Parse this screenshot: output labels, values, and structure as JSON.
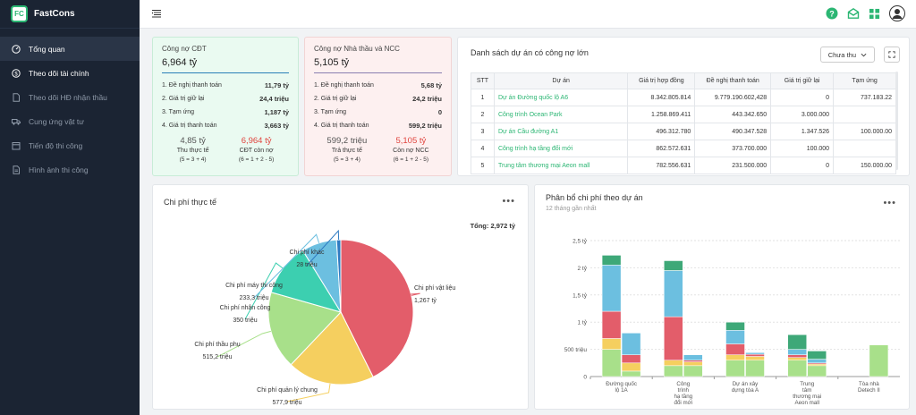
{
  "app": {
    "logo_text": "FC",
    "name": "FastCons"
  },
  "sidebar": {
    "items": [
      {
        "label": "Tổng quan",
        "icon": "dashboard-icon"
      },
      {
        "label": "Theo dõi tài chính",
        "icon": "dollar-icon"
      },
      {
        "label": "Theo dõi HĐ nhận thầu",
        "icon": "document-icon"
      },
      {
        "label": "Cung ứng vật tư",
        "icon": "truck-icon"
      },
      {
        "label": "Tiến độ thi công",
        "icon": "calendar-icon"
      },
      {
        "label": "Hình ảnh thi công",
        "icon": "image-icon"
      }
    ]
  },
  "cdt": {
    "title": "Công nợ CĐT",
    "total": "6,964 tỷ",
    "rows": [
      {
        "label": "1. Đề nghị thanh toán",
        "value": "11,79 tỷ"
      },
      {
        "label": "2. Giá trị giữ lại",
        "value": "24,4 triệu"
      },
      {
        "label": "3. Tạm ứng",
        "value": "1,187 tỷ"
      },
      {
        "label": "4. Giá trị thanh toán",
        "value": "3,663 tỷ"
      }
    ],
    "left": {
      "value": "4,85 tỷ",
      "label": "Thu thực tế",
      "formula": "(5 = 3 + 4)"
    },
    "right": {
      "value": "6,964 tỷ",
      "label": "CĐT còn nợ",
      "formula": "(6 = 1 + 2 - 5)"
    }
  },
  "ncc": {
    "title": "Công nợ Nhà thầu và NCC",
    "total": "5,105 tỷ",
    "rows": [
      {
        "label": "1. Đề nghị thanh toán",
        "value": "5,68 tỷ"
      },
      {
        "label": "2. Giá trị giữ lại",
        "value": "24,2 triệu"
      },
      {
        "label": "3. Tạm ứng",
        "value": "0"
      },
      {
        "label": "4. Giá trị thanh toán",
        "value": "599,2 triệu"
      }
    ],
    "left": {
      "value": "599,2 triệu",
      "label": "Trả thực tế",
      "formula": "(5 = 3 + 4)"
    },
    "right": {
      "value": "5,105 tỷ",
      "label": "Còn nợ NCC",
      "formula": "(6 = 1 + 2 - 5)"
    }
  },
  "projects": {
    "title": "Danh sách dự án có công nợ lớn",
    "filter": "Chưa thu",
    "headers": [
      "STT",
      "Dự án",
      "Giá trị hợp đồng",
      "Đề nghị thanh toán",
      "Giá trị giữ lại",
      "Tạm ứng"
    ],
    "rows": [
      [
        "1",
        "Dự án Đường quốc lộ A6",
        "8.342.805.814",
        "9.779.190.602,428",
        "0",
        "737.183.22"
      ],
      [
        "2",
        "Công trình Ocean Park",
        "1.258.869.411",
        "443.342.650",
        "3.000.000",
        ""
      ],
      [
        "3",
        "Dự án Cầu đường A1",
        "496.312.780",
        "490.347.528",
        "1.347.526",
        "100.000.00"
      ],
      [
        "4",
        "Công trình hạ tầng đổi mới",
        "862.572.631",
        "373.700.000",
        "100.000",
        ""
      ],
      [
        "5",
        "Trung tâm thương mại Aeon mall",
        "782.556.631",
        "231.500.000",
        "0",
        "150.000.00"
      ]
    ]
  },
  "actual_cost": {
    "title": "Chi phí thực tế",
    "total_label": "Tổng: 2,972 tỷ"
  },
  "distribution": {
    "title": "Phân bổ chi phí theo dự án",
    "subtitle": "12 tháng gần nhất"
  },
  "chart_data": [
    {
      "type": "pie",
      "title": "Chi phí thực tế",
      "slices": [
        {
          "name": "Chi phí vật liệu",
          "value": 1267,
          "label": "1,267 tỷ",
          "color": "#e35d6a"
        },
        {
          "name": "Chi phí quản lý chung",
          "value": 577.9,
          "label": "577,9 triệu",
          "color": "#f5cf5f"
        },
        {
          "name": "Chi phí thầu phụ",
          "value": 515.2,
          "label": "515,2 triệu",
          "color": "#a8e08a"
        },
        {
          "name": "Chi phí nhân công",
          "value": 350,
          "label": "350 triệu",
          "color": "#3ccfb0"
        },
        {
          "name": "Chi phí máy thi công",
          "value": 233.3,
          "label": "233,3 triệu",
          "color": "#6cbfe0"
        },
        {
          "name": "Chi phí khác",
          "value": 28,
          "label": "28 triệu",
          "color": "#2e7bc2"
        }
      ]
    },
    {
      "type": "bar",
      "stacked": true,
      "title": "Phân bổ chi phí theo dự án",
      "categories": [
        "Đường quốc lộ 1A",
        "Công trình hạ tầng đổi mới",
        "Dự án xây dựng tòa A",
        "Trung tâm thương mại Aeon mall",
        "Tòa nhà Detech II"
      ],
      "category_lines": [
        [
          "Đường quốc",
          "lộ 1A"
        ],
        [
          "Công",
          "trình",
          "hạ tầng",
          "đổi mới"
        ],
        [
          "Dự án xây",
          "dựng tòa A"
        ],
        [
          "Trung",
          "tâm",
          "thương mại",
          "Aeon mall"
        ],
        [
          "Tòa nhà",
          "Detech II"
        ]
      ],
      "ylim": [
        0,
        2.5
      ],
      "yticks": [
        {
          "value": 0,
          "label": "0"
        },
        {
          "value": 0.5,
          "label": "500 triệu"
        },
        {
          "value": 1,
          "label": "1 tỷ"
        },
        {
          "value": 1.5,
          "label": "1,5 tỷ"
        },
        {
          "value": 2,
          "label": "2 tỷ"
        },
        {
          "value": 2.5,
          "label": "2,5 tỷ"
        }
      ],
      "stack_colors": [
        "#a8e08a",
        "#f5cf5f",
        "#e35d6a",
        "#6cbfe0",
        "#3ea878"
      ],
      "groups": [
        [
          [
            0.5,
            0.2,
            0.5,
            0.85,
            0.18
          ],
          [
            0.1,
            0.15,
            0.15,
            0.4,
            0
          ]
        ],
        [
          [
            0.2,
            0.1,
            0.8,
            0.85,
            0.18
          ],
          [
            0.2,
            0.07,
            0.03,
            0.1,
            0
          ]
        ],
        [
          [
            0.3,
            0.1,
            0.2,
            0.25,
            0.15
          ],
          [
            0.3,
            0.07,
            0.04,
            0.03,
            0
          ]
        ],
        [
          [
            0.3,
            0.05,
            0.05,
            0.1,
            0.27
          ],
          [
            0.2,
            0.03,
            0.02,
            0.07,
            0.15
          ]
        ],
        [
          [
            0,
            0,
            0,
            0,
            0
          ],
          [
            0.58,
            0,
            0,
            0,
            0
          ]
        ]
      ]
    }
  ]
}
